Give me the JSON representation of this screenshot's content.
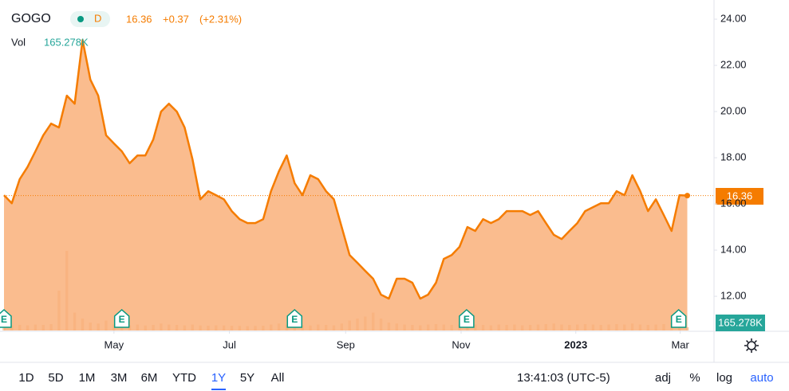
{
  "chart_data": {
    "type": "area",
    "symbol": "GOGO",
    "interval": "D",
    "price": "16.36",
    "change": "+0.37",
    "change_pct": "(+2.31%)",
    "volume_label": "Vol",
    "volume": "165.278K",
    "color": "#f57c00",
    "fill": "#f9b07a",
    "volume_color": "#f5c9a6",
    "values": [
      16.38,
      16.03,
      17.07,
      17.6,
      18.28,
      18.97,
      19.48,
      19.31,
      20.69,
      20.34,
      23.1,
      21.38,
      20.69,
      18.97,
      18.62,
      18.28,
      17.76,
      18.1,
      18.1,
      18.79,
      20,
      20.34,
      20,
      19.31,
      17.93,
      16.2,
      16.55,
      16.38,
      16.2,
      15.69,
      15.34,
      15.17,
      15.17,
      15.34,
      16.55,
      17.41,
      18.1,
      16.9,
      16.38,
      17.24,
      17.07,
      16.55,
      16.2,
      15,
      13.79,
      13.45,
      13.1,
      12.76,
      12.07,
      11.9,
      12.76,
      12.76,
      12.59,
      11.9,
      12.07,
      12.59,
      13.62,
      13.79,
      14.14,
      15,
      14.83,
      15.34,
      15.17,
      15.34,
      15.69,
      15.69,
      15.69,
      15.52,
      15.69,
      15.17,
      14.66,
      14.48,
      14.83,
      15.17,
      15.69,
      15.86,
      16.03,
      16.03,
      16.55,
      16.38,
      17.24,
      16.55,
      15.69,
      16.2,
      15.52,
      14.83,
      16.38,
      16.36
    ],
    "volumes": [
      300,
      250,
      280,
      260,
      300,
      280,
      320,
      2000,
      4000,
      900,
      600,
      400,
      350,
      500,
      300,
      280,
      260,
      300,
      250,
      280,
      350,
      300,
      280,
      260,
      300,
      250,
      240,
      260,
      250,
      240,
      230,
      220,
      230,
      240,
      300,
      350,
      300,
      280,
      260,
      250,
      300,
      280,
      260,
      350,
      500,
      600,
      700,
      900,
      600,
      400,
      350,
      300,
      280,
      260,
      300,
      320,
      300,
      280,
      300,
      350,
      300,
      280,
      260,
      300,
      280,
      300,
      260,
      280,
      300,
      320,
      350,
      300,
      280,
      300,
      320,
      300,
      280,
      300,
      320,
      300,
      350,
      300,
      280,
      300,
      320,
      400,
      300,
      165.278
    ],
    "volume_max": 4200,
    "xlim": [
      0,
      90.4
    ],
    "xticks": [
      {
        "value": 14.0,
        "label": "May"
      },
      {
        "value": 28.7,
        "label": "Jul"
      },
      {
        "value": 43.5,
        "label": "Sep"
      },
      {
        "value": 58.2,
        "label": "Nov"
      },
      {
        "value": 72.8,
        "label": "2023"
      },
      {
        "value": 86.1,
        "label": "Mar"
      }
    ],
    "ylim": [
      10.52,
      24.83
    ],
    "yticks": [
      {
        "value": 12,
        "label": "12.00"
      },
      {
        "value": 14,
        "label": "14.00"
      },
      {
        "value": 16,
        "label": "16.00"
      },
      {
        "value": 18,
        "label": "18.00"
      },
      {
        "value": 20,
        "label": "20.00"
      },
      {
        "value": 22,
        "label": "22.00"
      },
      {
        "value": 24,
        "label": "24.00"
      }
    ],
    "earnings": [
      {
        "x": 0,
        "label": "E"
      },
      {
        "x": 15.0,
        "label": "E"
      },
      {
        "x": 37.0,
        "label": "E"
      },
      {
        "x": 58.9,
        "label": "E"
      },
      {
        "x": 85.9,
        "label": "E"
      }
    ],
    "ranges": [
      "1D",
      "5D",
      "1M",
      "3M",
      "6M",
      "YTD",
      "1Y",
      "5Y",
      "All"
    ],
    "active_range": 6,
    "clock": "13:41:03 (UTC-5)",
    "options": [
      "adj",
      "%",
      "log",
      "auto"
    ]
  }
}
